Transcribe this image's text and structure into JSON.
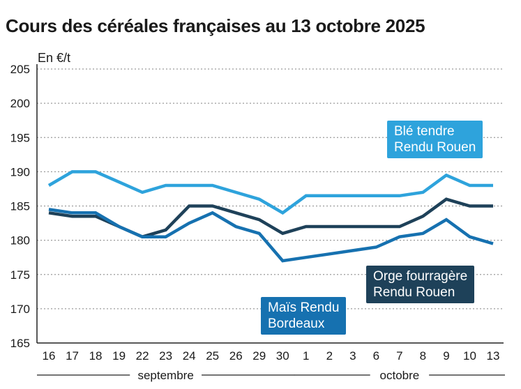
{
  "chart_data": {
    "type": "line",
    "title": "Cours des céréales françaises au 13 octobre 2025",
    "unit_label": "En €/t",
    "ylim": [
      165,
      205
    ],
    "yticks": [
      165,
      170,
      175,
      180,
      185,
      190,
      195,
      200,
      205
    ],
    "categories": [
      "16",
      "17",
      "18",
      "19",
      "22",
      "23",
      "24",
      "25",
      "26",
      "29",
      "30",
      "1",
      "2",
      "3",
      "6",
      "7",
      "8",
      "9",
      "10",
      "13"
    ],
    "months": [
      {
        "name": "septembre",
        "from": "16",
        "to": "30"
      },
      {
        "name": "octobre",
        "from": "1",
        "to": "13"
      }
    ],
    "grid": "horizontal-dotted",
    "series": [
      {
        "name": "Blé tendre Rendu Rouen",
        "label_lines": [
          "Blé tendre",
          "Rendu Rouen"
        ],
        "color": "#2ea3dc",
        "values": [
          188,
          190,
          190,
          188.5,
          187,
          188,
          188,
          188,
          187,
          186,
          184,
          186.5,
          186.5,
          186.5,
          186.5,
          186.5,
          187,
          189.5,
          188,
          188
        ]
      },
      {
        "name": "Orge fourragère Rendu Rouen",
        "label_lines": [
          "Orge fourragère",
          "Rendu Rouen"
        ],
        "color": "#1e4159",
        "values": [
          184,
          183.5,
          183.5,
          182,
          180.5,
          181.5,
          185,
          185,
          184,
          183,
          181,
          182,
          182,
          182,
          182,
          182,
          183.5,
          186,
          185,
          185
        ]
      },
      {
        "name": "Maïs Rendu Bordeaux",
        "label_lines": [
          "Maïs Rendu",
          "Bordeaux"
        ],
        "color": "#1671b0",
        "values": [
          184.5,
          184,
          184,
          182,
          180.5,
          180.5,
          182.5,
          184,
          182,
          181,
          177,
          177.5,
          178,
          178.5,
          179,
          180.5,
          181,
          183,
          180.5,
          179.5
        ]
      }
    ]
  }
}
